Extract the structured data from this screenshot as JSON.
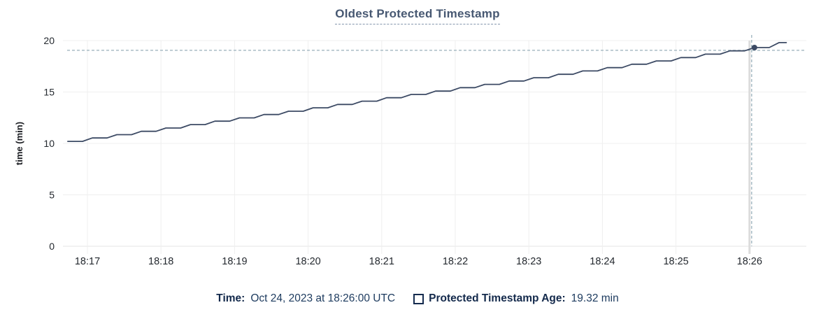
{
  "title": "Oldest Protected Timestamp",
  "colors": {
    "line": "#3c4a64",
    "dot": "#3c4a64",
    "grid": "#efefef",
    "grid_baseline": "#e5e5e5",
    "hover_column": "#dcdcdc",
    "crosshair": "#a2b7c1",
    "axis_text": "#24292f",
    "axis_label": "#1c1e23",
    "title_text": "#475872",
    "legend_text": "#13294b"
  },
  "legend": {
    "time_label": "Time:",
    "time_value": "Oct 24, 2023 at 18:26:00 UTC",
    "series_label": "Protected Timestamp Age:",
    "series_value": "19.32 min"
  },
  "chart_data": {
    "type": "line",
    "title": "Oldest Protected Timestamp",
    "xlabel": "",
    "ylabel": "time (min)",
    "ylim": [
      0,
      20
    ],
    "yticks": [
      0,
      5,
      10,
      15,
      20
    ],
    "xticks": [
      "18:17",
      "18:18",
      "18:19",
      "18:20",
      "18:21",
      "18:22",
      "18:23",
      "18:24",
      "18:25",
      "18:26"
    ],
    "grid": true,
    "legend_position": "bottom",
    "series": [
      {
        "name": "Protected Timestamp Age",
        "unit": "min",
        "style": "stepped-line",
        "points_format": "[seconds_after_18:17:00, age_min]",
        "points": [
          [
            -16,
            10.2
          ],
          [
            -4,
            10.2
          ],
          [
            4,
            10.53
          ],
          [
            16,
            10.53
          ],
          [
            24,
            10.85
          ],
          [
            36,
            10.85
          ],
          [
            44,
            11.18
          ],
          [
            56,
            11.18
          ],
          [
            64,
            11.5
          ],
          [
            76,
            11.5
          ],
          [
            84,
            11.83
          ],
          [
            96,
            11.83
          ],
          [
            104,
            12.16
          ],
          [
            116,
            12.16
          ],
          [
            124,
            12.48
          ],
          [
            136,
            12.48
          ],
          [
            144,
            12.81
          ],
          [
            156,
            12.81
          ],
          [
            164,
            13.13
          ],
          [
            176,
            13.13
          ],
          [
            184,
            13.46
          ],
          [
            196,
            13.46
          ],
          [
            204,
            13.79
          ],
          [
            216,
            13.79
          ],
          [
            224,
            14.11
          ],
          [
            236,
            14.11
          ],
          [
            244,
            14.44
          ],
          [
            256,
            14.44
          ],
          [
            264,
            14.76
          ],
          [
            276,
            14.76
          ],
          [
            284,
            15.09
          ],
          [
            296,
            15.09
          ],
          [
            304,
            15.42
          ],
          [
            316,
            15.42
          ],
          [
            324,
            15.74
          ],
          [
            336,
            15.74
          ],
          [
            344,
            16.07
          ],
          [
            356,
            16.07
          ],
          [
            364,
            16.39
          ],
          [
            376,
            16.39
          ],
          [
            384,
            16.72
          ],
          [
            396,
            16.72
          ],
          [
            404,
            17.05
          ],
          [
            416,
            17.05
          ],
          [
            424,
            17.37
          ],
          [
            436,
            17.37
          ],
          [
            444,
            17.7
          ],
          [
            456,
            17.7
          ],
          [
            464,
            18.02
          ],
          [
            476,
            18.02
          ],
          [
            484,
            18.35
          ],
          [
            496,
            18.35
          ],
          [
            504,
            18.68
          ],
          [
            516,
            18.68
          ],
          [
            524,
            19.0
          ],
          [
            536,
            19.0
          ],
          [
            544,
            19.32
          ],
          [
            556,
            19.32
          ],
          [
            564,
            19.8
          ],
          [
            570,
            19.8
          ]
        ]
      }
    ],
    "hover": {
      "time": "Oct 24, 2023 at 18:26:00 UTC",
      "x_tick": "18:26",
      "x_seconds": 540,
      "value": 19.32,
      "crosshair_value": 19.05,
      "unit": "min"
    }
  }
}
